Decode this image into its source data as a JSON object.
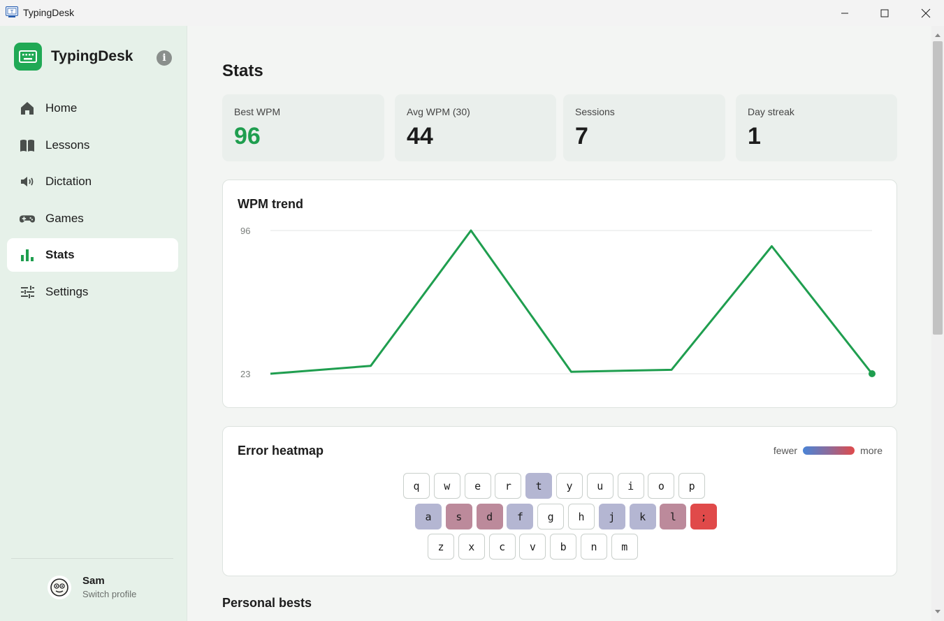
{
  "window": {
    "title": "TypingDesk"
  },
  "sidebar": {
    "brand": "TypingDesk",
    "items": [
      {
        "label": "Home",
        "icon": "home-icon"
      },
      {
        "label": "Lessons",
        "icon": "book-icon"
      },
      {
        "label": "Dictation",
        "icon": "speaker-icon"
      },
      {
        "label": "Games",
        "icon": "gamepad-icon"
      },
      {
        "label": "Stats",
        "icon": "bar-chart-icon",
        "active": true
      },
      {
        "label": "Settings",
        "icon": "sliders-icon"
      }
    ],
    "profile": {
      "name": "Sam",
      "action": "Switch profile"
    }
  },
  "main": {
    "title": "Stats",
    "stats": [
      {
        "label": "Best WPM",
        "value": "96",
        "highlight": true
      },
      {
        "label": "Avg WPM (30)",
        "value": "44"
      },
      {
        "label": "Sessions",
        "value": "7"
      },
      {
        "label": "Day streak",
        "value": "1"
      }
    ],
    "trend": {
      "title": "WPM trend",
      "chart_data": {
        "type": "line",
        "x": [
          1,
          2,
          3,
          4,
          5,
          6,
          7
        ],
        "values": [
          23,
          27,
          96,
          24,
          25,
          88,
          23
        ],
        "ylim": [
          23,
          96
        ],
        "yticks": [
          "96",
          "23"
        ],
        "color": "#1f9e4f"
      }
    },
    "heatmap": {
      "title": "Error heatmap",
      "legend_low": "fewer",
      "legend_high": "more",
      "rows": [
        [
          {
            "k": "q",
            "c": "#ffffff"
          },
          {
            "k": "w",
            "c": "#ffffff"
          },
          {
            "k": "e",
            "c": "#ffffff"
          },
          {
            "k": "r",
            "c": "#ffffff"
          },
          {
            "k": "t",
            "c": "#b4b6d2"
          },
          {
            "k": "y",
            "c": "#ffffff"
          },
          {
            "k": "u",
            "c": "#ffffff"
          },
          {
            "k": "i",
            "c": "#ffffff"
          },
          {
            "k": "o",
            "c": "#ffffff"
          },
          {
            "k": "p",
            "c": "#ffffff"
          }
        ],
        [
          {
            "k": "a",
            "c": "#b4b6d2"
          },
          {
            "k": "s",
            "c": "#bc8a9b"
          },
          {
            "k": "d",
            "c": "#bc8a9b"
          },
          {
            "k": "f",
            "c": "#b4b6d2"
          },
          {
            "k": "g",
            "c": "#ffffff"
          },
          {
            "k": "h",
            "c": "#ffffff"
          },
          {
            "k": "j",
            "c": "#b4b6d2"
          },
          {
            "k": "k",
            "c": "#b4b6d2"
          },
          {
            "k": "l",
            "c": "#bc8a9b"
          },
          {
            "k": ";",
            "c": "#e04a4a"
          }
        ],
        [
          {
            "k": "z",
            "c": "#ffffff"
          },
          {
            "k": "x",
            "c": "#ffffff"
          },
          {
            "k": "c",
            "c": "#ffffff"
          },
          {
            "k": "v",
            "c": "#ffffff"
          },
          {
            "k": "b",
            "c": "#ffffff"
          },
          {
            "k": "n",
            "c": "#ffffff"
          },
          {
            "k": "m",
            "c": "#ffffff"
          }
        ]
      ]
    },
    "section": "Personal bests"
  }
}
